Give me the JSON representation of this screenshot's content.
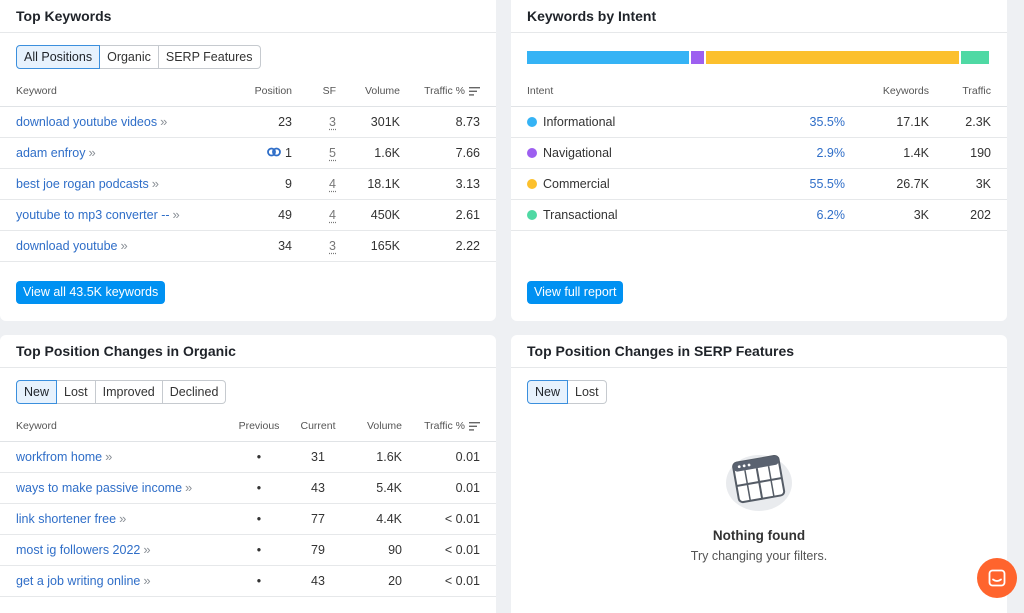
{
  "top_keywords": {
    "title": "Top Keywords",
    "filters": [
      "All Positions",
      "Organic",
      "SERP Features"
    ],
    "columns": [
      "Keyword",
      "Position",
      "SF",
      "Volume",
      "Traffic %"
    ],
    "rows": [
      {
        "keyword": "download youtube videos",
        "position": "23",
        "sf": "3",
        "volume": "301K",
        "traffic": "8.73",
        "link": false
      },
      {
        "keyword": "adam enfroy",
        "position": "1",
        "sf": "5",
        "volume": "1.6K",
        "traffic": "7.66",
        "link": true
      },
      {
        "keyword": "best joe rogan podcasts",
        "position": "9",
        "sf": "4",
        "volume": "18.1K",
        "traffic": "3.13",
        "link": false
      },
      {
        "keyword": "youtube to mp3 converter --",
        "position": "49",
        "sf": "4",
        "volume": "450K",
        "traffic": "2.61",
        "link": false
      },
      {
        "keyword": "download youtube",
        "position": "34",
        "sf": "3",
        "volume": "165K",
        "traffic": "2.22",
        "link": false
      }
    ],
    "button": "View all 43.5K keywords"
  },
  "keywords_by_intent": {
    "title": "Keywords by Intent",
    "columns": [
      "Intent",
      "Keywords",
      "Traffic"
    ],
    "rows": [
      {
        "intent": "Informational",
        "percent": "35.5%",
        "keywords": "17.1K",
        "traffic": "2.3K",
        "color": "#35b3f5",
        "share": 0.355
      },
      {
        "intent": "Navigational",
        "percent": "2.9%",
        "keywords": "1.4K",
        "traffic": "190",
        "color": "#9d5ff0",
        "share": 0.029
      },
      {
        "intent": "Commercial",
        "percent": "55.5%",
        "keywords": "26.7K",
        "traffic": "3K",
        "color": "#fcc02d",
        "share": 0.555
      },
      {
        "intent": "Transactional",
        "percent": "6.2%",
        "keywords": "3K",
        "traffic": "202",
        "color": "#4fd9a4",
        "share": 0.062
      }
    ],
    "button": "View full report"
  },
  "position_changes": {
    "title": "Top Position Changes in Organic",
    "filters": [
      "New",
      "Lost",
      "Improved",
      "Declined"
    ],
    "columns": [
      "Keyword",
      "Previous",
      "Current",
      "Volume",
      "Traffic %"
    ],
    "rows": [
      {
        "keyword": "workfrom home",
        "previous": "•",
        "current": "31",
        "volume": "1.6K",
        "traffic": "0.01"
      },
      {
        "keyword": "ways to make passive income",
        "previous": "•",
        "current": "43",
        "volume": "5.4K",
        "traffic": "0.01"
      },
      {
        "keyword": "link shortener free",
        "previous": "•",
        "current": "77",
        "volume": "4.4K",
        "traffic": "< 0.01"
      },
      {
        "keyword": "most ig followers 2022",
        "previous": "•",
        "current": "79",
        "volume": "90",
        "traffic": "< 0.01"
      },
      {
        "keyword": "get a job writing online",
        "previous": "•",
        "current": "43",
        "volume": "20",
        "traffic": "< 0.01"
      }
    ]
  },
  "serp_changes": {
    "title": "Top Position Changes in SERP Features",
    "filters": [
      "New",
      "Lost"
    ],
    "empty_title": "Nothing found",
    "empty_subtitle": "Try changing your filters."
  },
  "chat": {
    "icon": "chat-icon"
  }
}
